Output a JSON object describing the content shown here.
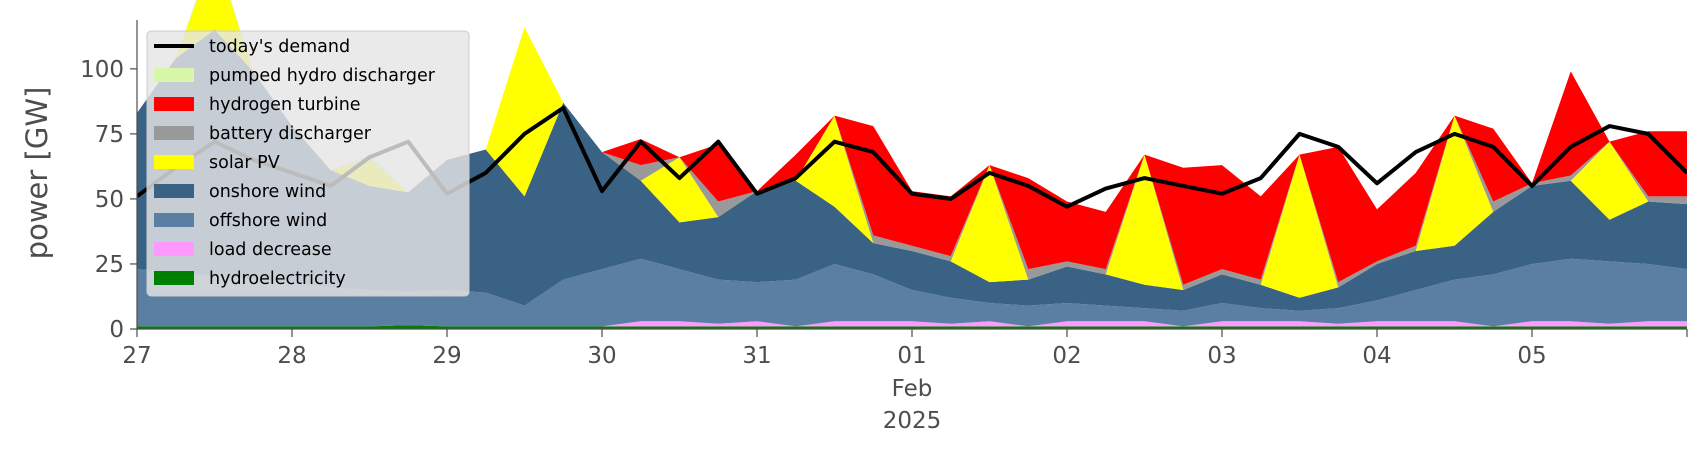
{
  "chart_data": {
    "type": "area",
    "ylabel": "power [GW]",
    "ylim": [
      0,
      118
    ],
    "yticks": [
      0,
      25,
      50,
      75,
      100
    ],
    "xlim": [
      "2025-01-27T00:00",
      "2025-02-06T00:00"
    ],
    "xtick_labels": [
      {
        "date": "2025-01-27",
        "label": "27"
      },
      {
        "date": "2025-01-28",
        "label": "28"
      },
      {
        "date": "2025-01-29",
        "label": "29"
      },
      {
        "date": "2025-01-30",
        "label": "30"
      },
      {
        "date": "2025-01-31",
        "label": "31"
      },
      {
        "date": "2025-02-01",
        "label": "01",
        "sub": [
          "Feb",
          "2025"
        ]
      },
      {
        "date": "2025-02-02",
        "label": "02"
      },
      {
        "date": "2025-02-03",
        "label": "03"
      },
      {
        "date": "2025-02-04",
        "label": "04"
      },
      {
        "date": "2025-02-05",
        "label": "05"
      }
    ],
    "grid": false,
    "legend_position": "top-left",
    "x": [
      "2025-01-27T00:00",
      "2025-01-27T06:00",
      "2025-01-27T12:00",
      "2025-01-27T18:00",
      "2025-01-28T00:00",
      "2025-01-28T06:00",
      "2025-01-28T12:00",
      "2025-01-28T18:00",
      "2025-01-29T00:00",
      "2025-01-29T06:00",
      "2025-01-29T12:00",
      "2025-01-29T18:00",
      "2025-01-30T00:00",
      "2025-01-30T06:00",
      "2025-01-30T12:00",
      "2025-01-30T18:00",
      "2025-01-31T00:00",
      "2025-01-31T06:00",
      "2025-01-31T12:00",
      "2025-01-31T18:00",
      "2025-02-01T00:00",
      "2025-02-01T06:00",
      "2025-02-01T12:00",
      "2025-02-01T18:00",
      "2025-02-02T00:00",
      "2025-02-02T06:00",
      "2025-02-02T12:00",
      "2025-02-02T18:00",
      "2025-02-03T00:00",
      "2025-02-03T06:00",
      "2025-02-03T12:00",
      "2025-02-03T18:00",
      "2025-02-04T00:00",
      "2025-02-04T06:00",
      "2025-02-04T12:00",
      "2025-02-04T18:00",
      "2025-02-05T00:00",
      "2025-02-05T06:00",
      "2025-02-05T12:00",
      "2025-02-05T18:00",
      "2025-02-06T00:00"
    ],
    "series": [
      {
        "name": "hydroelectricity",
        "color": "#008000",
        "values": [
          1,
          1,
          1,
          1,
          1,
          1,
          1,
          1.5,
          1,
          1,
          1,
          1,
          1,
          1,
          1,
          1,
          1,
          1,
          1,
          1,
          1,
          1,
          1,
          1,
          1,
          1,
          1,
          1,
          1,
          1,
          1,
          1,
          1,
          1,
          1,
          1,
          1,
          1,
          1,
          1,
          1
        ]
      },
      {
        "name": "load decrease",
        "color": "#ff99ff",
        "values": [
          0,
          0,
          0,
          0,
          0,
          0,
          0,
          0,
          0,
          0,
          0,
          0,
          0,
          2,
          2,
          1,
          2,
          0,
          2,
          2,
          2,
          1,
          2,
          0,
          2,
          2,
          2,
          0,
          2,
          2,
          2,
          1,
          2,
          2,
          2,
          0,
          2,
          2,
          1,
          2,
          2
        ]
      },
      {
        "name": "offshore wind",
        "color": "#5b7fa3",
        "values": [
          22,
          21,
          19,
          18,
          17,
          15,
          14,
          13,
          14,
          13,
          8,
          18,
          22,
          24,
          20,
          17,
          15,
          18,
          22,
          18,
          12,
          10,
          7,
          8,
          7,
          6,
          5,
          6,
          7,
          5,
          4,
          6,
          8,
          12,
          16,
          20,
          22,
          24,
          24,
          22,
          20
        ]
      },
      {
        "name": "onshore wind",
        "color": "#3a6284",
        "values": [
          60,
          82,
          95,
          80,
          60,
          45,
          40,
          38,
          50,
          55,
          42,
          68,
          45,
          30,
          18,
          24,
          35,
          38,
          22,
          12,
          15,
          14,
          8,
          10,
          14,
          12,
          9,
          8,
          11,
          9,
          5,
          8,
          14,
          15,
          13,
          24,
          30,
          30,
          16,
          24,
          25
        ]
      },
      {
        "name": "solar PV",
        "color": "#ffff00",
        "values": [
          0,
          0,
          30,
          0,
          0,
          0,
          10,
          0,
          0,
          0,
          65,
          0,
          0,
          0,
          25,
          0,
          0,
          0,
          35,
          0,
          0,
          0,
          45,
          0,
          0,
          0,
          50,
          0,
          0,
          0,
          55,
          0,
          0,
          0,
          50,
          0,
          0,
          0,
          30,
          0,
          0
        ]
      },
      {
        "name": "battery discharger",
        "color": "#999999",
        "values": [
          0,
          0,
          0,
          0,
          0,
          0,
          0,
          0,
          0,
          0,
          0,
          0,
          0,
          6,
          0,
          6,
          0,
          0,
          0,
          3,
          2,
          2,
          0,
          4,
          2,
          2,
          0,
          2,
          2,
          2,
          0,
          2,
          1,
          2,
          0,
          4,
          1,
          2,
          0,
          2,
          3
        ]
      },
      {
        "name": "hydrogen turbine",
        "color": "#ff0000",
        "values": [
          0,
          0,
          0,
          0,
          0,
          0,
          0,
          0,
          0,
          0,
          0,
          0,
          0,
          10,
          0,
          22,
          0,
          10,
          0,
          42,
          21,
          23,
          0,
          35,
          23,
          22,
          0,
          45,
          40,
          32,
          0,
          52,
          20,
          28,
          0,
          28,
          0,
          40,
          0,
          25,
          25
        ]
      },
      {
        "name": "pumped hydro discharger",
        "color": "#d9f7a8",
        "values": [
          0,
          0,
          2,
          0,
          0,
          0,
          2,
          0,
          0,
          0,
          0,
          0,
          0,
          0,
          0,
          0,
          0,
          0,
          0,
          0,
          0,
          0,
          0,
          0,
          0,
          0,
          0,
          0,
          0,
          0,
          0,
          0,
          0,
          0,
          0,
          0,
          0,
          0,
          0,
          0,
          0
        ]
      }
    ],
    "line_series": {
      "name": "today's demand",
      "color": "#000000",
      "values": [
        51,
        62,
        72,
        65,
        60,
        55,
        66,
        72,
        52,
        60,
        75,
        85,
        53,
        72,
        58,
        72,
        52,
        58,
        72,
        68,
        52,
        50,
        60,
        55,
        47,
        54,
        58,
        55,
        52,
        58,
        75,
        70,
        56,
        68,
        75,
        70,
        55,
        70,
        78,
        75,
        60
      ]
    },
    "legend": [
      {
        "label": "today's demand",
        "color": "#000000",
        "kind": "line"
      },
      {
        "label": "pumped hydro discharger",
        "color": "#d9f7a8",
        "kind": "patch"
      },
      {
        "label": "hydrogen turbine",
        "color": "#ff0000",
        "kind": "patch"
      },
      {
        "label": "battery discharger",
        "color": "#999999",
        "kind": "patch"
      },
      {
        "label": "solar PV",
        "color": "#ffff00",
        "kind": "patch"
      },
      {
        "label": "onshore wind",
        "color": "#3a6284",
        "kind": "patch"
      },
      {
        "label": "offshore wind",
        "color": "#5b7fa3",
        "kind": "patch"
      },
      {
        "label": "load decrease",
        "color": "#ff99ff",
        "kind": "patch"
      },
      {
        "label": "hydroelectricity",
        "color": "#008000",
        "kind": "patch"
      }
    ]
  }
}
